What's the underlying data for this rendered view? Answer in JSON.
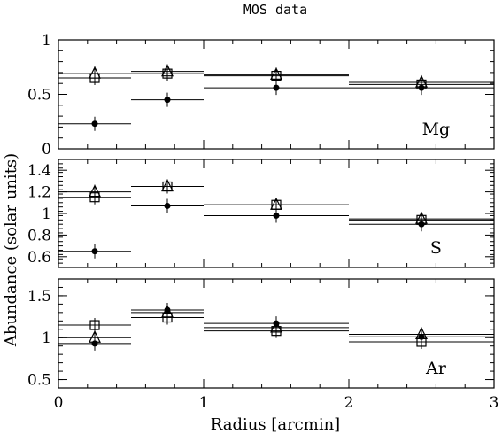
{
  "chart_data": {
    "type": "scatter",
    "title": "MOS data",
    "xlabel": "Radius [arcmin]",
    "ylabel": "Abundance (solar units)",
    "xlim": [
      0,
      3
    ],
    "x_ticks": [
      0,
      1,
      2,
      3
    ],
    "marker_legend": [
      "open triangle",
      "open square",
      "filled circle"
    ],
    "panels": [
      {
        "element": "Mg",
        "ylim": [
          0,
          1
        ],
        "y_ticks": [
          0,
          0.5,
          1
        ],
        "y_tick_labels": [
          "0",
          "0.5",
          "1"
        ],
        "bins": [
          {
            "x": 0.25,
            "x_min": 0.0,
            "x_max": 0.5,
            "triangle": 0.69,
            "square": 0.65,
            "circle": 0.23
          },
          {
            "x": 0.75,
            "x_min": 0.5,
            "x_max": 1.0,
            "triangle": 0.71,
            "square": 0.69,
            "circle": 0.45
          },
          {
            "x": 1.5,
            "x_min": 1.0,
            "x_max": 2.0,
            "triangle": 0.68,
            "square": 0.67,
            "circle": 0.56
          },
          {
            "x": 2.5,
            "x_min": 2.0,
            "x_max": 3.0,
            "triangle": 0.61,
            "square": 0.59,
            "circle": 0.56
          }
        ]
      },
      {
        "element": "S",
        "ylim": [
          0.5,
          1.5
        ],
        "y_ticks": [
          0.6,
          0.8,
          1.0,
          1.2,
          1.4
        ],
        "y_tick_labels": [
          "0.6",
          "0.8",
          "1",
          "1.2",
          "1.4"
        ],
        "bins": [
          {
            "x": 0.25,
            "x_min": 0.0,
            "x_max": 0.5,
            "triangle": 1.2,
            "square": 1.15,
            "circle": 0.65
          },
          {
            "x": 0.75,
            "x_min": 0.5,
            "x_max": 1.0,
            "triangle": 1.25,
            "square": 1.25,
            "circle": 1.07
          },
          {
            "x": 1.5,
            "x_min": 1.0,
            "x_max": 2.0,
            "triangle": 1.08,
            "square": 1.08,
            "circle": 0.98
          },
          {
            "x": 2.5,
            "x_min": 2.0,
            "x_max": 3.0,
            "triangle": 0.95,
            "square": 0.94,
            "circle": 0.9
          }
        ]
      },
      {
        "element": "Ar",
        "ylim": [
          0.4,
          1.7
        ],
        "y_ticks": [
          0.5,
          1.0,
          1.5
        ],
        "y_tick_labels": [
          "0.5",
          "1",
          "1.5"
        ],
        "bins": [
          {
            "x": 0.25,
            "x_min": 0.0,
            "x_max": 0.5,
            "triangle": 1.0,
            "square": 1.15,
            "circle": 0.93
          },
          {
            "x": 0.75,
            "x_min": 0.5,
            "x_max": 1.0,
            "triangle": 1.3,
            "square": 1.24,
            "circle": 1.33
          },
          {
            "x": 1.5,
            "x_min": 1.0,
            "x_max": 2.0,
            "triangle": 1.12,
            "square": 1.08,
            "circle": 1.17
          },
          {
            "x": 2.5,
            "x_min": 2.0,
            "x_max": 3.0,
            "triangle": 1.04,
            "square": 0.95,
            "circle": 1.01
          }
        ]
      }
    ]
  }
}
